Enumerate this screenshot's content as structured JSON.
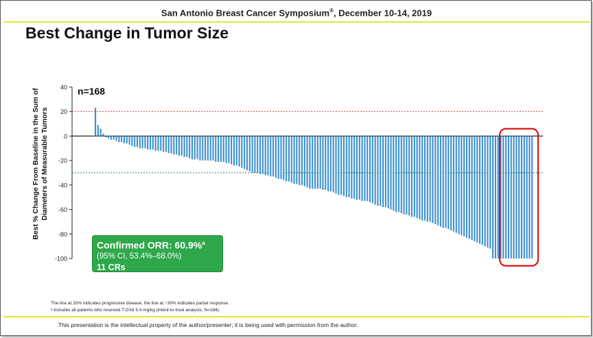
{
  "header": {
    "conference": "San Antonio Breast Cancer Symposium",
    "reg_mark": "®",
    "dates": ", December 10-14, 2019"
  },
  "slide": {
    "title": "Best Change in Tumor Size"
  },
  "colors": {
    "bar": "#3a8fd0",
    "pd_line": "#cc2222",
    "pr_line": "#1a8a3a",
    "highlight": "#e01010",
    "orr_box": "#2ea84a",
    "accent_yellow": "#e8e235"
  },
  "chart_data": {
    "type": "bar",
    "ylabel": "Best % Change From Baseline in the Sum of Diameters of Measurable Tumors",
    "ylim": [
      -100,
      40
    ],
    "yticks": [
      40,
      20,
      0,
      -20,
      -40,
      -60,
      -80,
      -100
    ],
    "annotation_n": "n=168",
    "reference_lines": [
      {
        "value": 20,
        "meaning": "progressive disease"
      },
      {
        "value": -30,
        "meaning": "partial response"
      }
    ],
    "values": [
      23,
      9,
      6,
      2,
      -1,
      -2,
      -3,
      -3,
      -4,
      -5,
      -5,
      -6,
      -6,
      -7,
      -8,
      -9,
      -9,
      -10,
      -10,
      -10,
      -11,
      -11,
      -11,
      -12,
      -12,
      -12,
      -13,
      -13,
      -14,
      -14,
      -15,
      -15,
      -16,
      -16,
      -17,
      -17,
      -18,
      -19,
      -19,
      -19,
      -20,
      -20,
      -20,
      -20,
      -20,
      -20,
      -21,
      -21,
      -21,
      -21,
      -22,
      -22,
      -23,
      -24,
      -24,
      -25,
      -26,
      -27,
      -28,
      -29,
      -30,
      -30,
      -30,
      -31,
      -31,
      -32,
      -32,
      -33,
      -33,
      -34,
      -35,
      -35,
      -36,
      -37,
      -37,
      -38,
      -39,
      -39,
      -40,
      -40,
      -41,
      -42,
      -43,
      -43,
      -43,
      -43,
      -43,
      -44,
      -44,
      -45,
      -45,
      -46,
      -47,
      -48,
      -48,
      -49,
      -50,
      -50,
      -51,
      -51,
      -52,
      -52,
      -53,
      -53,
      -53,
      -54,
      -55,
      -56,
      -57,
      -57,
      -58,
      -58,
      -59,
      -60,
      -61,
      -62,
      -62,
      -63,
      -64,
      -64,
      -65,
      -66,
      -66,
      -67,
      -68,
      -69,
      -69,
      -70,
      -70,
      -71,
      -72,
      -73,
      -74,
      -75,
      -75,
      -76,
      -77,
      -78,
      -79,
      -80,
      -81,
      -82,
      -83,
      -84,
      -85,
      -86,
      -87,
      -88,
      -89,
      -90,
      -91,
      -92,
      -100,
      -100,
      -100,
      -100,
      -100,
      -100,
      -100,
      -100,
      -100,
      -100,
      -100,
      -100,
      -100,
      -100,
      -100,
      -100
    ],
    "highlight_last": 11
  },
  "orr": {
    "title": "Confirmed ORR: 60.9%",
    "sup": "a",
    "ci": "(95% CI, 53.4%–68.0%)",
    "crs": "11 CRs"
  },
  "footnotes": {
    "line1": "The line at 20% indicates progressive disease; the line at −30% indicates partial response.",
    "line2": "ᵃ Includes all patients who received T-DXd 5.4 mg/kg (intent-to-treat analysis; N=184)."
  },
  "footer": {
    "text": "This presentation is the intellectual property of the author/presenter; it is being used with permission from the author."
  }
}
